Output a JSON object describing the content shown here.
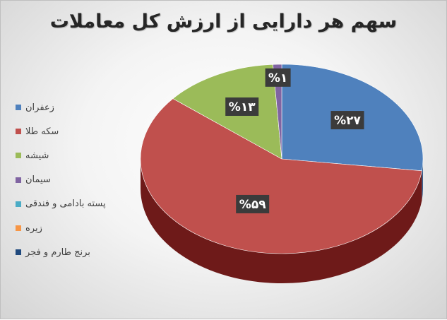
{
  "chart_data": {
    "type": "pie",
    "title": "سهم هر دارایی از ارزش کل معاملات",
    "legend_position": "left",
    "slices": [
      {
        "name": "زعفران",
        "value": 27,
        "label": "%۲۷",
        "color": "#4f81bd",
        "side": "#3a6391"
      },
      {
        "name": "سکه طلا",
        "value": 59,
        "label": "%۵۹",
        "color": "#c0504d",
        "side": "#6e1a19"
      },
      {
        "name": "شیشه",
        "value": 13,
        "label": "%۱۳",
        "color": "#9bbb59",
        "side": "#6b8a30"
      },
      {
        "name": "سیمان",
        "value": 1,
        "label": "%۱",
        "color": "#8064a2",
        "side": "#5a4575"
      },
      {
        "name": "پسته بادامی و فندقی",
        "value": 0,
        "label": "",
        "color": "#4bacc6",
        "side": "#2f7c90"
      },
      {
        "name": "زیره",
        "value": 0,
        "label": "",
        "color": "#f79646",
        "side": "#b86a2a"
      },
      {
        "name": "برنج طارم و فجر",
        "value": 0,
        "label": "",
        "color": "#1f497d",
        "side": "#142f52"
      }
    ]
  }
}
